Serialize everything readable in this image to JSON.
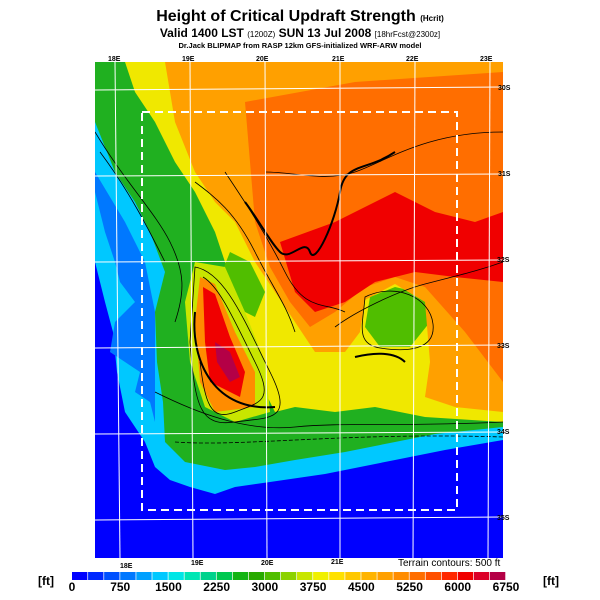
{
  "header": {
    "title": "Height of Critical Updraft Strength",
    "title_unit": "(Hcrit)",
    "valid_line": "Valid 1400 LST",
    "valid_utc": "(1200Z)",
    "valid_date": "SUN 13 Jul 2008",
    "forecast_info": "[18hrFcst@2300z]",
    "credit": "Dr.Jack BLIPMAP from RASP 12km GFS-initialized WRF-ARW model"
  },
  "map": {
    "lon_labels_top": [
      "18E",
      "19E",
      "20E",
      "21E",
      "22E",
      "23E"
    ],
    "lon_labels_bottom": [
      "18E",
      "19E",
      "20E",
      "21E"
    ],
    "lat_labels": [
      "30S",
      "31S",
      "32S",
      "33S",
      "34S",
      "35S"
    ],
    "terrain_note": "Terrain contours: 500 ft"
  },
  "legend": {
    "unit_left": "[ft]",
    "unit_right": "[ft]",
    "ticks": [
      "0",
      "750",
      "1500",
      "2250",
      "3000",
      "3750",
      "4500",
      "5250",
      "6000",
      "6750"
    ],
    "colors": [
      "#0000ff",
      "#0028ff",
      "#0050ff",
      "#0078ff",
      "#00a0ff",
      "#00c8ff",
      "#00e6e6",
      "#00e6b4",
      "#00d28c",
      "#00c850",
      "#14b414",
      "#28aa00",
      "#50be00",
      "#8cd200",
      "#c8e600",
      "#f0f000",
      "#ffe100",
      "#ffc800",
      "#ffb400",
      "#ffa000",
      "#ff8c00",
      "#ff6e00",
      "#ff5000",
      "#ff2800",
      "#f00000",
      "#dc0028",
      "#b40046"
    ]
  }
}
